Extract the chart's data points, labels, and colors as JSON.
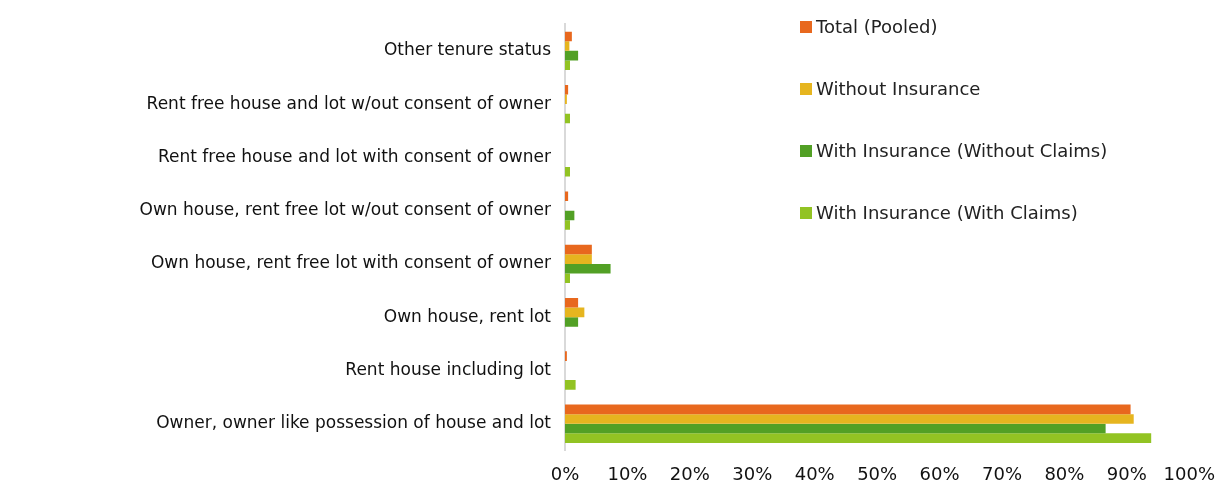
{
  "chart_data": {
    "type": "bar",
    "orientation": "horizontal",
    "categories": [
      "Other tenure status",
      "Rent free house and lot w/out consent of owner",
      "Rent free house and lot with consent of owner",
      "Own house, rent free lot w/out consent of owner",
      "Own house, rent free lot with consent of owner",
      "Own house, rent lot",
      "Rent house including lot",
      "Owner, owner like possession of house and lot"
    ],
    "series": [
      {
        "name": "Total (Pooled)",
        "color": "#e8681e",
        "values": [
          1.1,
          0.5,
          0,
          0.5,
          4.3,
          2.1,
          0.3,
          90.6
        ]
      },
      {
        "name": "Without Insurance",
        "color": "#e6b51f",
        "values": [
          0.7,
          0.3,
          0,
          0,
          4.3,
          3.1,
          0,
          91.1
        ]
      },
      {
        "name": "With Insurance (Without Claims)",
        "color": "#52a025",
        "values": [
          2.1,
          0,
          0,
          1.5,
          7.3,
          2.1,
          0,
          86.6
        ]
      },
      {
        "name": "With Insurance (With Claims)",
        "color": "#92c323",
        "values": [
          0.8,
          0.8,
          0.8,
          0.8,
          0.8,
          0,
          1.7,
          93.9
        ]
      }
    ],
    "xlim": [
      0,
      100
    ],
    "xticks": [
      {
        "value": 0,
        "label": "0%"
      },
      {
        "value": 10,
        "label": "10%"
      },
      {
        "value": 20,
        "label": "20%"
      },
      {
        "value": 30,
        "label": "30%"
      },
      {
        "value": 40,
        "label": "40%"
      },
      {
        "value": 50,
        "label": "50%"
      },
      {
        "value": 60,
        "label": "60%"
      },
      {
        "value": 70,
        "label": "70%"
      },
      {
        "value": 80,
        "label": "80%"
      },
      {
        "value": 90,
        "label": "90%"
      },
      {
        "value": 100,
        "label": "100%"
      }
    ],
    "grid": false,
    "legend": "top right"
  }
}
